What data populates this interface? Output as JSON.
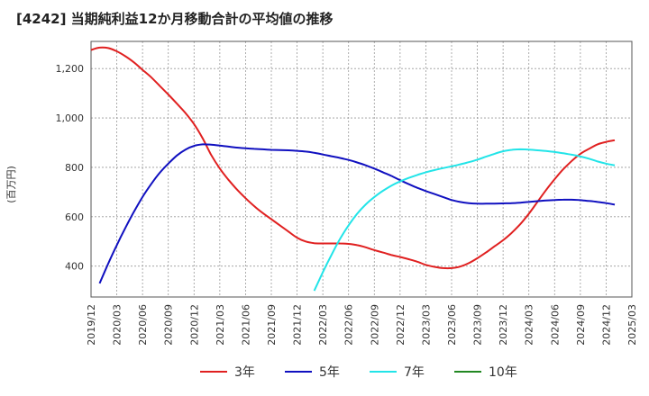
{
  "chart_data": {
    "type": "line",
    "title": "[4242]  当期純利益12か月移動合計の平均値の推移",
    "ylabel": "(百万円)",
    "xlabel": "",
    "ylim": [
      275,
      1310
    ],
    "yticks": [
      400,
      600,
      800,
      1000,
      1200
    ],
    "ytick_labels": [
      "400",
      "600",
      "800",
      "1,000",
      "1,200"
    ],
    "xlim": [
      "2019-12",
      "2025-03"
    ],
    "xtick_labels": [
      "2019/12",
      "2020/03",
      "2020/06",
      "2020/09",
      "2020/12",
      "2021/03",
      "2021/06",
      "2021/09",
      "2021/12",
      "2022/03",
      "2022/06",
      "2022/09",
      "2022/12",
      "2023/03",
      "2023/06",
      "2023/09",
      "2023/12",
      "2024/03",
      "2024/06",
      "2024/09",
      "2024/12",
      "2025/03"
    ],
    "grid": true,
    "legend_position": "bottom",
    "series": [
      {
        "name": "3年",
        "color": "#e02020",
        "points": [
          [
            "2019-12",
            1275
          ],
          [
            "2020-01",
            1285
          ],
          [
            "2020-02",
            1283
          ],
          [
            "2020-03",
            1270
          ],
          [
            "2020-04",
            1250
          ],
          [
            "2020-05",
            1225
          ],
          [
            "2020-06",
            1195
          ],
          [
            "2020-07",
            1165
          ],
          [
            "2020-08",
            1130
          ],
          [
            "2020-09",
            1095
          ],
          [
            "2020-10",
            1058
          ],
          [
            "2020-11",
            1020
          ],
          [
            "2020-12",
            975
          ],
          [
            "2021-01",
            918
          ],
          [
            "2021-02",
            850
          ],
          [
            "2021-03",
            795
          ],
          [
            "2021-04",
            750
          ],
          [
            "2021-05",
            710
          ],
          [
            "2021-06",
            675
          ],
          [
            "2021-07",
            643
          ],
          [
            "2021-08",
            615
          ],
          [
            "2021-09",
            590
          ],
          [
            "2021-10",
            565
          ],
          [
            "2021-11",
            540
          ],
          [
            "2021-12",
            515
          ],
          [
            "2022-01",
            500
          ],
          [
            "2022-02",
            493
          ],
          [
            "2022-03",
            492
          ],
          [
            "2022-04",
            492
          ],
          [
            "2022-05",
            492
          ],
          [
            "2022-06",
            490
          ],
          [
            "2022-07",
            485
          ],
          [
            "2022-08",
            476
          ],
          [
            "2022-09",
            465
          ],
          [
            "2022-10",
            455
          ],
          [
            "2022-11",
            445
          ],
          [
            "2022-12",
            437
          ],
          [
            "2023-01",
            428
          ],
          [
            "2023-02",
            418
          ],
          [
            "2023-03",
            405
          ],
          [
            "2023-04",
            397
          ],
          [
            "2023-05",
            392
          ],
          [
            "2023-06",
            392
          ],
          [
            "2023-07",
            398
          ],
          [
            "2023-08",
            412
          ],
          [
            "2023-09",
            432
          ],
          [
            "2023-10",
            455
          ],
          [
            "2023-11",
            480
          ],
          [
            "2023-12",
            505
          ],
          [
            "2024-01",
            535
          ],
          [
            "2024-02",
            570
          ],
          [
            "2024-03",
            612
          ],
          [
            "2024-04",
            660
          ],
          [
            "2024-05",
            708
          ],
          [
            "2024-06",
            752
          ],
          [
            "2024-07",
            792
          ],
          [
            "2024-08",
            826
          ],
          [
            "2024-09",
            855
          ],
          [
            "2024-10",
            875
          ],
          [
            "2024-11",
            893
          ],
          [
            "2024-12",
            903
          ],
          [
            "2025-01",
            910
          ]
        ]
      },
      {
        "name": "5年",
        "color": "#1010c0",
        "points": [
          [
            "2020-01",
            330
          ],
          [
            "2020-02",
            410
          ],
          [
            "2020-03",
            485
          ],
          [
            "2020-04",
            555
          ],
          [
            "2020-05",
            620
          ],
          [
            "2020-06",
            680
          ],
          [
            "2020-07",
            732
          ],
          [
            "2020-08",
            778
          ],
          [
            "2020-09",
            815
          ],
          [
            "2020-10",
            848
          ],
          [
            "2020-11",
            872
          ],
          [
            "2020-12",
            887
          ],
          [
            "2021-01",
            893
          ],
          [
            "2021-02",
            892
          ],
          [
            "2021-03",
            888
          ],
          [
            "2021-04",
            884
          ],
          [
            "2021-05",
            880
          ],
          [
            "2021-06",
            877
          ],
          [
            "2021-07",
            875
          ],
          [
            "2021-08",
            873
          ],
          [
            "2021-09",
            871
          ],
          [
            "2021-10",
            870
          ],
          [
            "2021-11",
            869
          ],
          [
            "2021-12",
            867
          ],
          [
            "2022-01",
            864
          ],
          [
            "2022-02",
            859
          ],
          [
            "2022-03",
            852
          ],
          [
            "2022-04",
            845
          ],
          [
            "2022-05",
            838
          ],
          [
            "2022-06",
            830
          ],
          [
            "2022-07",
            820
          ],
          [
            "2022-08",
            808
          ],
          [
            "2022-09",
            795
          ],
          [
            "2022-10",
            780
          ],
          [
            "2022-11",
            765
          ],
          [
            "2022-12",
            748
          ],
          [
            "2023-01",
            732
          ],
          [
            "2023-02",
            717
          ],
          [
            "2023-03",
            704
          ],
          [
            "2023-04",
            692
          ],
          [
            "2023-05",
            680
          ],
          [
            "2023-06",
            668
          ],
          [
            "2023-07",
            660
          ],
          [
            "2023-08",
            655
          ],
          [
            "2023-09",
            653
          ],
          [
            "2023-10",
            653
          ],
          [
            "2023-11",
            653
          ],
          [
            "2023-12",
            654
          ],
          [
            "2024-01",
            655
          ],
          [
            "2024-02",
            657
          ],
          [
            "2024-03",
            660
          ],
          [
            "2024-04",
            663
          ],
          [
            "2024-05",
            666
          ],
          [
            "2024-06",
            668
          ],
          [
            "2024-07",
            669
          ],
          [
            "2024-08",
            669
          ],
          [
            "2024-09",
            667
          ],
          [
            "2024-10",
            664
          ],
          [
            "2024-11",
            660
          ],
          [
            "2024-12",
            655
          ],
          [
            "2025-01",
            649
          ]
        ]
      },
      {
        "name": "7年",
        "color": "#22e4e8",
        "points": [
          [
            "2022-02",
            300
          ],
          [
            "2022-03",
            375
          ],
          [
            "2022-04",
            445
          ],
          [
            "2022-05",
            510
          ],
          [
            "2022-06",
            565
          ],
          [
            "2022-07",
            612
          ],
          [
            "2022-08",
            650
          ],
          [
            "2022-09",
            680
          ],
          [
            "2022-10",
            705
          ],
          [
            "2022-11",
            726
          ],
          [
            "2022-12",
            743
          ],
          [
            "2023-01",
            757
          ],
          [
            "2023-02",
            769
          ],
          [
            "2023-03",
            780
          ],
          [
            "2023-04",
            789
          ],
          [
            "2023-05",
            797
          ],
          [
            "2023-06",
            804
          ],
          [
            "2023-07",
            812
          ],
          [
            "2023-08",
            821
          ],
          [
            "2023-09",
            831
          ],
          [
            "2023-10",
            843
          ],
          [
            "2023-11",
            855
          ],
          [
            "2023-12",
            865
          ],
          [
            "2024-01",
            871
          ],
          [
            "2024-02",
            873
          ],
          [
            "2024-03",
            872
          ],
          [
            "2024-04",
            869
          ],
          [
            "2024-05",
            866
          ],
          [
            "2024-06",
            862
          ],
          [
            "2024-07",
            857
          ],
          [
            "2024-08",
            851
          ],
          [
            "2024-09",
            844
          ],
          [
            "2024-10",
            835
          ],
          [
            "2024-11",
            824
          ],
          [
            "2024-12",
            815
          ],
          [
            "2025-01",
            808
          ]
        ]
      },
      {
        "name": "10年",
        "color": "#228822",
        "points": []
      }
    ]
  }
}
